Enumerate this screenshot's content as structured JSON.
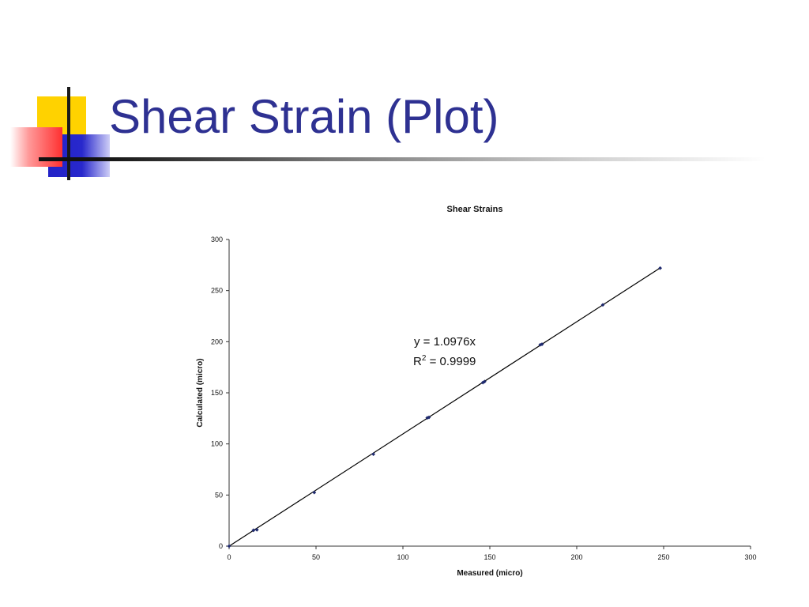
{
  "slide": {
    "title": "Shear Strain (Plot)",
    "title_color": "#2e3192"
  },
  "chart_data": {
    "type": "scatter",
    "title": "Shear Strains",
    "xlabel": "Measured (micro)",
    "ylabel": "Calculated (micro)",
    "xlim": [
      0,
      300
    ],
    "ylim": [
      0,
      300
    ],
    "x_ticks": [
      "0",
      "50",
      "100",
      "150",
      "200",
      "250",
      "300"
    ],
    "y_ticks": [
      "0",
      "50",
      "100",
      "150",
      "200",
      "250",
      "300"
    ],
    "grid": false,
    "legend": "none",
    "marker_color": "#1f2a6e",
    "points": [
      {
        "x": 0,
        "y": 0
      },
      {
        "x": 14,
        "y": 15.5
      },
      {
        "x": 16,
        "y": 16
      },
      {
        "x": 49,
        "y": 52.5
      },
      {
        "x": 83,
        "y": 90
      },
      {
        "x": 114,
        "y": 125.5
      },
      {
        "x": 115,
        "y": 126
      },
      {
        "x": 146,
        "y": 160
      },
      {
        "x": 147,
        "y": 161
      },
      {
        "x": 179,
        "y": 197
      },
      {
        "x": 180,
        "y": 197.5
      },
      {
        "x": 215,
        "y": 236
      },
      {
        "x": 248,
        "y": 272
      }
    ],
    "trendline": {
      "type": "linear",
      "slope": 1.0976,
      "intercept": 0,
      "x_range": [
        0,
        248
      ]
    },
    "annotation": {
      "equation": "y = 1.0976x",
      "r_symbol": "R",
      "r_power": "2",
      "r_value": " = 0.9999"
    }
  }
}
